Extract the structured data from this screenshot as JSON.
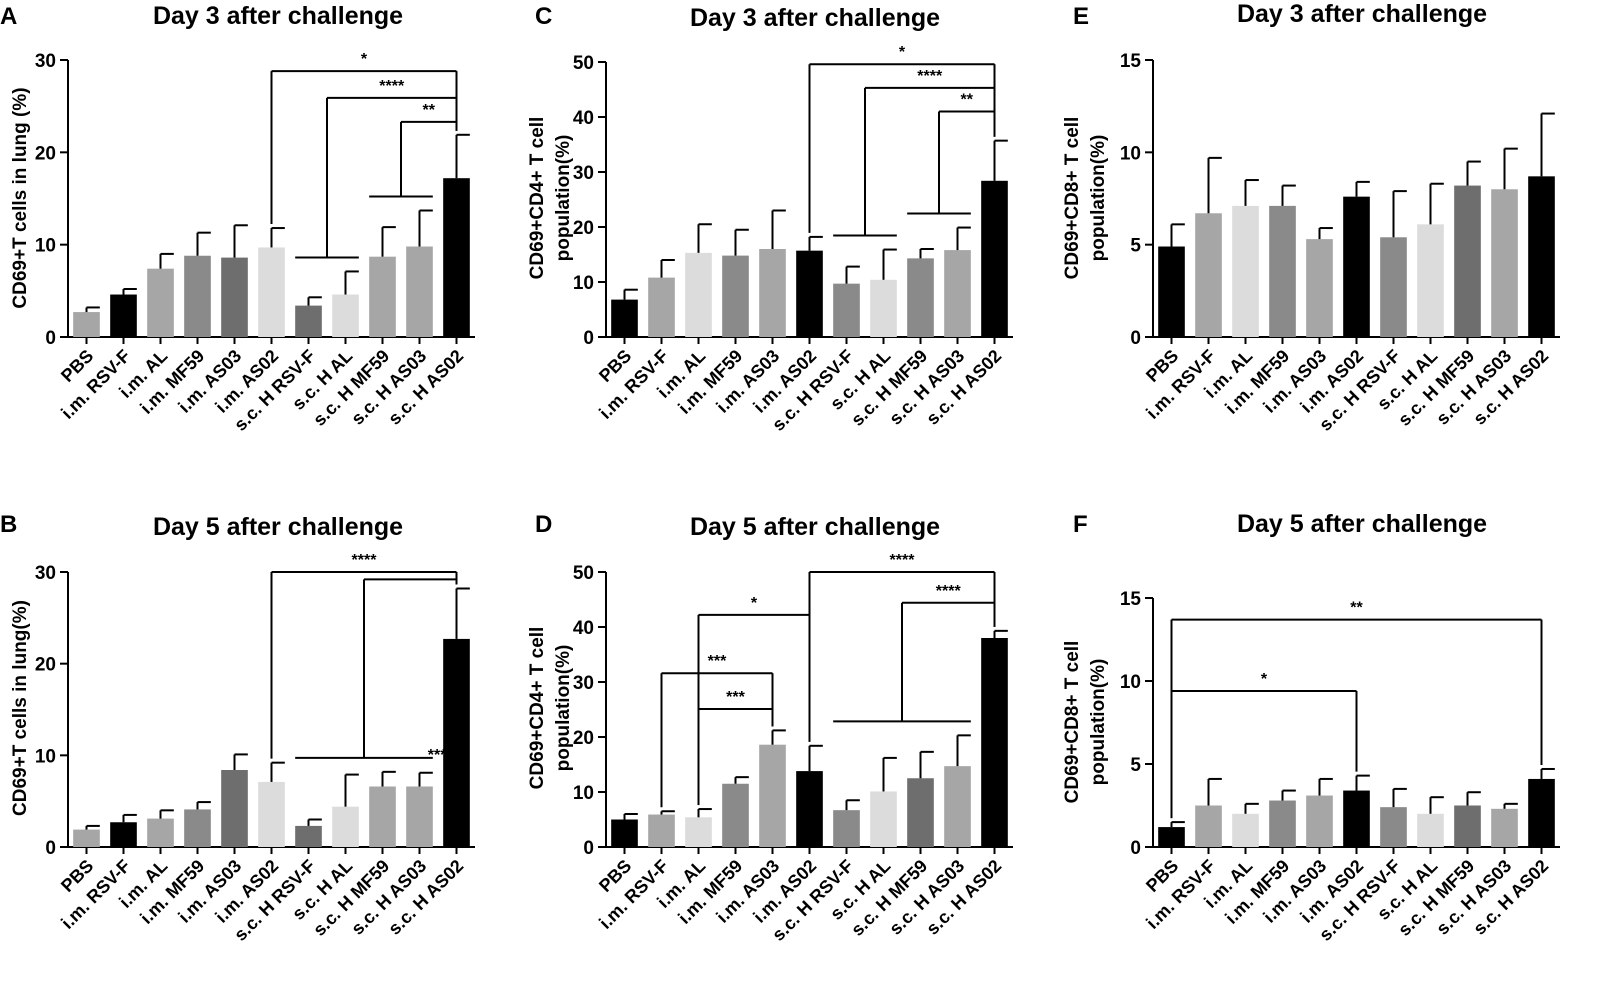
{
  "chart_data": [
    {
      "panel": "A",
      "type": "bar",
      "title": "Day 3 after challenge",
      "ylabel": "CD69+T cells in lung (%)",
      "ylim": [
        0,
        30
      ],
      "yticks": [
        0,
        10,
        20,
        30
      ],
      "categories": [
        "PBS",
        "i.m. RSV-F",
        "i.m. AL",
        "i.m. MF59",
        "i.m. AS03",
        "i.m. AS02",
        "s.c. H RSV-F",
        "s.c. H AL",
        "s.c. H MF59",
        "s.c. H AS03",
        "s.c. H AS02"
      ],
      "values": [
        2.7,
        4.6,
        7.4,
        8.8,
        8.6,
        9.7,
        3.4,
        4.6,
        8.7,
        9.8,
        17.2
      ],
      "errors": [
        0.5,
        0.6,
        1.6,
        2.5,
        3.5,
        2.1,
        0.9,
        2.5,
        3.2,
        3.9,
        4.7
      ],
      "colors": [
        "#a6a6a6",
        "#000000",
        "#a6a6a6",
        "#8a8a8a",
        "#6e6e6e",
        "#dcdcdc",
        "#6e6e6e",
        "#dcdcdc",
        "#a6a6a6",
        "#a6a6a6",
        "#000000"
      ],
      "significance": [
        {
          "from": [
            5
          ],
          "to": 10,
          "level": 28.8,
          "label": "*"
        },
        {
          "from": [
            6,
            7
          ],
          "to": 10,
          "level": 25.9,
          "label": "****"
        },
        {
          "from": [
            8,
            9
          ],
          "to": 10,
          "level": 23.3,
          "label": "**"
        }
      ]
    },
    {
      "panel": "B",
      "type": "bar",
      "title": "Day 5 after challenge",
      "ylabel": "CD69+T cells in lung(%)",
      "ylim": [
        0,
        30
      ],
      "yticks": [
        0,
        10,
        20,
        30
      ],
      "categories": [
        "PBS",
        "i.m. RSV-F",
        "i.m. AL",
        "i.m. MF59",
        "i.m. AS03",
        "i.m. AS02",
        "s.c. H RSV-F",
        "s.c. H AL",
        "s.c. H MF59",
        "s.c. H AS03",
        "s.c. H AS02"
      ],
      "values": [
        1.9,
        2.7,
        3.1,
        4.1,
        8.4,
        7.1,
        2.3,
        4.4,
        6.6,
        6.6,
        22.7
      ],
      "errors": [
        0.4,
        0.8,
        0.9,
        0.8,
        1.7,
        2.1,
        0.7,
        3.5,
        1.6,
        1.5,
        5.5
      ],
      "colors": [
        "#a6a6a6",
        "#000000",
        "#a6a6a6",
        "#8a8a8a",
        "#6e6e6e",
        "#dcdcdc",
        "#6e6e6e",
        "#dcdcdc",
        "#a6a6a6",
        "#a6a6a6",
        "#000000"
      ],
      "significance": [
        {
          "from": [
            5
          ],
          "to": 10,
          "level": 30.0,
          "label": "****"
        },
        {
          "from": [
            6,
            7,
            8,
            9
          ],
          "to": 10,
          "level": 29.2,
          "label": "****",
          "label_near_from": true
        }
      ]
    },
    {
      "panel": "C",
      "type": "bar",
      "title": "Day 3 after challenge",
      "ylabel": "CD69+CD4+ T cell population(%)",
      "ylim": [
        0,
        50
      ],
      "yticks": [
        0,
        10,
        20,
        30,
        40,
        50
      ],
      "categories": [
        "PBS",
        "i.m. RSV-F",
        "i.m. AL",
        "i.m. MF59",
        "i.m. AS03",
        "i.m. AS02",
        "s.c. H RSV-F",
        "s.c. H AL",
        "s.c. H MF59",
        "s.c. H AS03",
        "s.c. H AS02"
      ],
      "values": [
        6.8,
        10.8,
        15.3,
        14.8,
        16.0,
        15.7,
        9.7,
        10.4,
        14.3,
        15.8,
        28.4
      ],
      "errors": [
        1.8,
        3.2,
        5.2,
        4.7,
        7.0,
        2.5,
        3.1,
        5.5,
        1.7,
        4.1,
        7.3
      ],
      "colors": [
        "#000000",
        "#a6a6a6",
        "#dcdcdc",
        "#8a8a8a",
        "#a6a6a6",
        "#000000",
        "#8a8a8a",
        "#dcdcdc",
        "#8a8a8a",
        "#a6a6a6",
        "#000000"
      ],
      "significance": [
        {
          "from": [
            5
          ],
          "to": 10,
          "level": 49.6,
          "label": "*"
        },
        {
          "from": [
            6,
            7
          ],
          "to": 10,
          "level": 45.3,
          "label": "****"
        },
        {
          "from": [
            8,
            9
          ],
          "to": 10,
          "level": 41.0,
          "label": "**"
        }
      ]
    },
    {
      "panel": "D",
      "type": "bar",
      "title": "Day 5 after challenge",
      "ylabel": "CD69+CD4+ T cell population(%)",
      "ylim": [
        0,
        50
      ],
      "yticks": [
        0,
        10,
        20,
        30,
        40,
        50
      ],
      "categories": [
        "PBS",
        "i.m. RSV-F",
        "i.m. AL",
        "i.m. MF59",
        "i.m. AS03",
        "i.m. AS02",
        "s.c. H RSV-F",
        "s.c. H AL",
        "s.c. H MF59",
        "s.c. H AS03",
        "s.c. H AS02"
      ],
      "values": [
        5.0,
        5.9,
        5.4,
        11.5,
        18.6,
        13.8,
        6.7,
        10.1,
        12.5,
        14.7,
        38.0
      ],
      "errors": [
        1.0,
        0.6,
        1.5,
        1.2,
        2.6,
        4.6,
        1.8,
        6.1,
        4.8,
        5.6,
        1.3
      ],
      "colors": [
        "#000000",
        "#a6a6a6",
        "#dcdcdc",
        "#8a8a8a",
        "#a6a6a6",
        "#000000",
        "#8a8a8a",
        "#dcdcdc",
        "#6e6e6e",
        "#a6a6a6",
        "#000000"
      ],
      "significance": [
        {
          "from": [
            2
          ],
          "to": 5,
          "level": 42.2,
          "label": "*"
        },
        {
          "from": [
            1
          ],
          "to": 4,
          "level": 31.6,
          "label": "***"
        },
        {
          "from": [
            2
          ],
          "to": 4,
          "level": 25.1,
          "label": "***"
        },
        {
          "from": [
            5
          ],
          "to": 10,
          "level": 50.0,
          "label": "****"
        },
        {
          "from": [
            6,
            7,
            8,
            9
          ],
          "to": 10,
          "level": 44.4,
          "label": "****"
        }
      ]
    },
    {
      "panel": "E",
      "type": "bar",
      "title": "Day 3 after challenge",
      "ylabel": "CD69+CD8+ T cell population(%)",
      "ylim": [
        0,
        15
      ],
      "yticks": [
        0,
        5,
        10,
        15
      ],
      "categories": [
        "PBS",
        "i.m. RSV-F",
        "i.m. AL",
        "i.m. MF59",
        "i.m. AS03",
        "i.m. AS02",
        "s.c. H RSV-F",
        "s.c. H AL",
        "s.c. H MF59",
        "s.c. H AS03",
        "s.c. H AS02"
      ],
      "values": [
        4.9,
        6.7,
        7.1,
        7.1,
        5.3,
        7.6,
        5.4,
        6.1,
        8.2,
        8.0,
        8.7
      ],
      "errors": [
        1.2,
        3.0,
        1.4,
        1.1,
        0.6,
        0.8,
        2.5,
        2.2,
        1.3,
        2.2,
        3.4
      ],
      "colors": [
        "#000000",
        "#a6a6a6",
        "#dcdcdc",
        "#8a8a8a",
        "#a6a6a6",
        "#000000",
        "#8a8a8a",
        "#dcdcdc",
        "#6e6e6e",
        "#a6a6a6",
        "#000000"
      ],
      "significance": []
    },
    {
      "panel": "F",
      "type": "bar",
      "title": "Day 5 after challenge",
      "ylabel": "CD69+CD8+ T cell population(%)",
      "ylim": [
        0,
        15
      ],
      "yticks": [
        0,
        5,
        10,
        15
      ],
      "categories": [
        "PBS",
        "i.m. RSV-F",
        "i.m. AL",
        "i.m. MF59",
        "i.m. AS03",
        "i.m. AS02",
        "s.c. H RSV-F",
        "s.c. H AL",
        "s.c. H MF59",
        "s.c. H AS03",
        "s.c. H AS02"
      ],
      "values": [
        1.2,
        2.5,
        2.0,
        2.8,
        3.1,
        3.4,
        2.4,
        2.0,
        2.5,
        2.3,
        4.1
      ],
      "errors": [
        0.3,
        1.6,
        0.6,
        0.6,
        1.0,
        0.9,
        1.1,
        1.0,
        0.8,
        0.3,
        0.6
      ],
      "colors": [
        "#000000",
        "#a6a6a6",
        "#dcdcdc",
        "#8a8a8a",
        "#a6a6a6",
        "#000000",
        "#8a8a8a",
        "#dcdcdc",
        "#6e6e6e",
        "#a6a6a6",
        "#000000"
      ],
      "significance": [
        {
          "from": [
            0
          ],
          "to": 10,
          "level": 13.7,
          "label": "**"
        },
        {
          "from": [
            0
          ],
          "to": 5,
          "level": 9.4,
          "label": "*"
        }
      ]
    }
  ]
}
